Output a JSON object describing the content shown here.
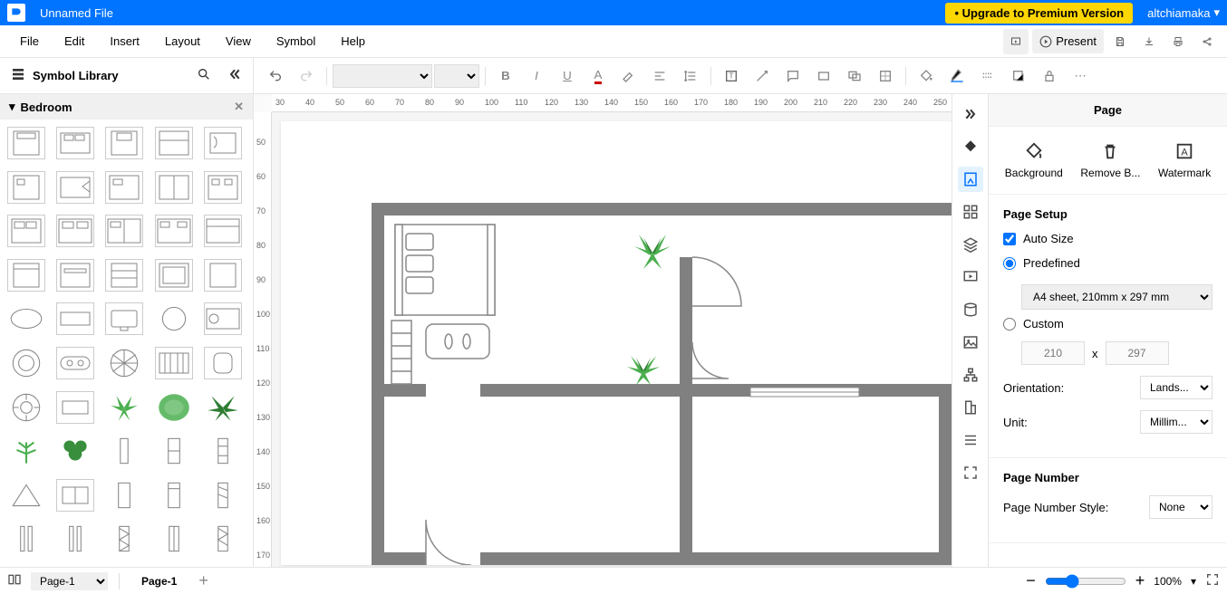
{
  "titlebar": {
    "filename": "Unnamed File",
    "upgrade_label": "• Upgrade to Premium Version",
    "username": "altchiamaka"
  },
  "menubar": {
    "items": [
      "File",
      "Edit",
      "Insert",
      "Layout",
      "View",
      "Symbol",
      "Help"
    ],
    "present_label": "Present"
  },
  "left_panel": {
    "title": "Symbol Library",
    "category": "Bedroom"
  },
  "right_panel": {
    "title": "Page",
    "actions": {
      "background": "Background",
      "remove_bg": "Remove B...",
      "watermark": "Watermark"
    },
    "page_setup": {
      "heading": "Page Setup",
      "auto_size_label": "Auto Size",
      "auto_size_checked": true,
      "predefined_label": "Predefined",
      "predefined_value": "A4 sheet, 210mm x 297 mm",
      "custom_label": "Custom",
      "custom_width": "210",
      "custom_height": "297",
      "orientation_label": "Orientation:",
      "orientation_value": "Lands...",
      "unit_label": "Unit:",
      "unit_value": "Millim..."
    },
    "page_number": {
      "heading": "Page Number",
      "style_label": "Page Number Style:",
      "style_value": "None"
    }
  },
  "bottombar": {
    "page_select": "Page-1",
    "active_tab": "Page-1",
    "zoom": "100%"
  },
  "ruler_h": [
    30,
    40,
    50,
    60,
    70,
    80,
    90,
    100,
    110,
    120,
    130,
    140,
    150,
    160,
    170,
    180,
    190,
    200,
    210,
    220,
    230,
    240,
    250
  ],
  "ruler_v": [
    50,
    60,
    70,
    80,
    90,
    100,
    110,
    120,
    130,
    140,
    150,
    160,
    170
  ],
  "colors": {
    "primary": "#0073ff",
    "upgrade_bg": "#ffd700",
    "wall": "#808080",
    "plant_dark": "#2e7d32",
    "plant_light": "#66bb6a"
  }
}
